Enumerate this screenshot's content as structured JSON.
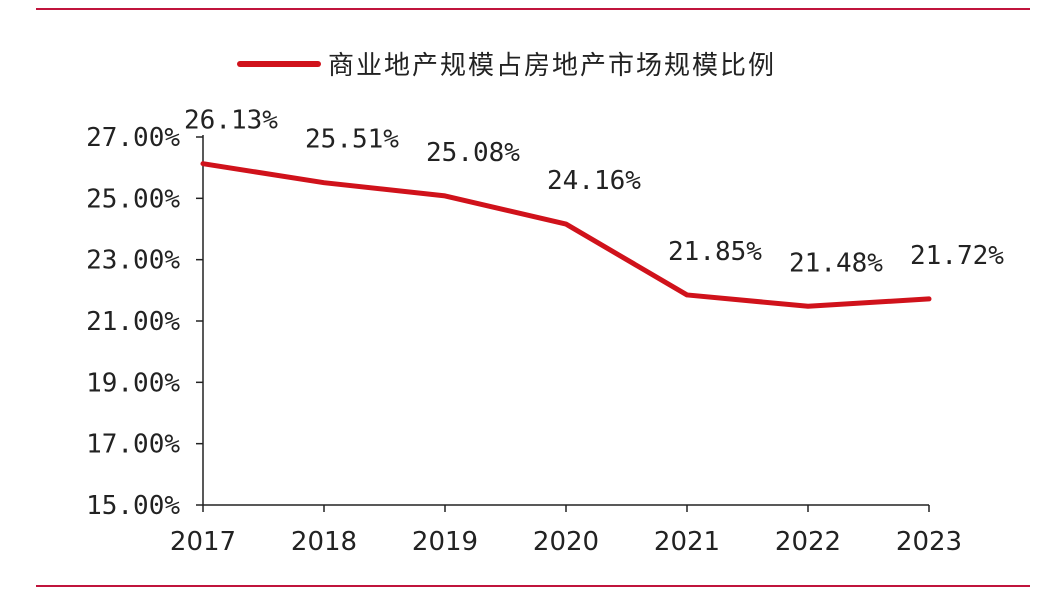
{
  "chart_data": {
    "type": "line",
    "title": "",
    "xlabel": "",
    "ylabel": "",
    "categories": [
      "2017",
      "2018",
      "2019",
      "2020",
      "2021",
      "2022",
      "2023"
    ],
    "series": [
      {
        "name": "商业地产规模占房地产市场规模比例",
        "values": [
          26.13,
          25.51,
          25.08,
          24.16,
          21.85,
          21.48,
          21.72
        ],
        "labels": [
          "26.13%",
          "25.51%",
          "25.08%",
          "24.16%",
          "21.85%",
          "21.48%",
          "21.72%"
        ],
        "color": "#d0121b"
      }
    ],
    "ylim": [
      15,
      27
    ],
    "yticks": [
      15,
      17,
      19,
      21,
      23,
      25,
      27
    ],
    "ytick_labels": [
      "15.00%",
      "17.00%",
      "19.00%",
      "21.00%",
      "23.00%",
      "25.00%",
      "27.00%"
    ],
    "grid": false,
    "legend_position": "top-center"
  },
  "colors": {
    "accent": "#d0121b",
    "rule": "#c0143c",
    "axis": "#222222"
  }
}
